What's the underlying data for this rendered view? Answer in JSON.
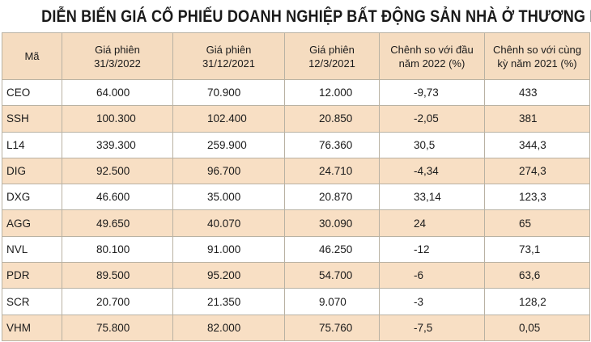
{
  "chart_data": {
    "type": "table",
    "title": "DIỄN BIẾN GIÁ CỔ PHIẾU DOANH NGHIỆP BẤT ĐỘNG SẢN NHÀ Ở THƯƠNG MẠI",
    "columns": [
      "Mã",
      "Giá phiên\n31/3/2022",
      "Giá phiên\n31/12/2021",
      "Giá phiên\n12/3/2021",
      "Chênh so với đầu\nnăm 2022 (%)",
      "Chênh so với cùng\nkỳ năm 2021 (%)"
    ],
    "rows": [
      [
        "CEO",
        "64.000",
        "70.900",
        "12.000",
        "-9,73",
        "433"
      ],
      [
        "SSH",
        "100.300",
        "102.400",
        "20.850",
        "-2,05",
        "381"
      ],
      [
        "L14",
        "339.300",
        "259.900",
        "76.360",
        "30,5",
        "344,3"
      ],
      [
        "DIG",
        "92.500",
        "96.700",
        "24.710",
        "-4,34",
        "274,3"
      ],
      [
        "DXG",
        "46.600",
        "35.000",
        "20.870",
        "33,14",
        "123,3"
      ],
      [
        "AGG",
        "49.650",
        "40.070",
        "30.090",
        "24",
        "65"
      ],
      [
        "NVL",
        "80.100",
        "91.000",
        "46.250",
        "-12",
        "73,1"
      ],
      [
        "PDR",
        "89.500",
        "95.200",
        "54.700",
        "-6",
        "63,6"
      ],
      [
        "SCR",
        "20.700",
        "21.350",
        "9.070",
        "-3",
        "128,2"
      ],
      [
        "VHM",
        "75.800",
        "82.000",
        "75.760",
        "-7,5",
        "0,05"
      ]
    ]
  },
  "colors": {
    "header_bg": "#f5dcc0",
    "alt_row_bg": "#f8dfc4",
    "border": "#b9b2a3"
  }
}
